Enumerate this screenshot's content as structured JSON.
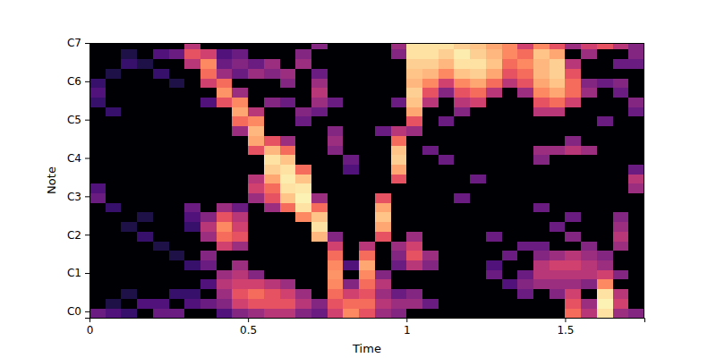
{
  "chart_data": {
    "type": "heatmap",
    "xlabel": "Time",
    "ylabel": "Note",
    "x": [
      0,
      0.05,
      0.1,
      0.15,
      0.2,
      0.25,
      0.3,
      0.35,
      0.4,
      0.45,
      0.5,
      0.55,
      0.6,
      0.65,
      0.7,
      0.75,
      0.8,
      0.85,
      0.9,
      0.95,
      1,
      1.05,
      1.1,
      1.15,
      1.2,
      1.25,
      1.3,
      1.35,
      1.4,
      1.45,
      1.5,
      1.55,
      1.6,
      1.65,
      1.7
    ],
    "y": [
      10,
      13,
      16,
      19,
      22,
      25,
      28,
      31,
      34,
      37,
      40,
      43,
      46,
      49,
      52,
      55,
      58,
      61,
      64,
      67,
      70,
      73,
      76,
      79,
      82,
      85,
      88,
      91,
      94
    ],
    "z": [
      [
        -55,
        -60,
        -65,
        -80,
        -55,
        -55,
        -80,
        -80,
        -60,
        -50,
        -45,
        -40,
        -40,
        -50,
        -55,
        -35,
        -20,
        -30,
        -45,
        -50,
        -80,
        -80,
        -80,
        -80,
        -80,
        -80,
        -80,
        -80,
        -80,
        -80,
        -25,
        -40,
        -5,
        -45,
        -50
      ],
      [
        -80,
        -70,
        -80,
        -60,
        -60,
        -80,
        -60,
        -55,
        -50,
        -35,
        -30,
        -30,
        -30,
        -40,
        -50,
        -30,
        -25,
        -25,
        -40,
        -45,
        -45,
        -55,
        -80,
        -80,
        -80,
        -80,
        -80,
        -80,
        -80,
        -80,
        -30,
        -45,
        -2,
        -35,
        -80
      ],
      [
        -80,
        -80,
        -70,
        -80,
        -80,
        -65,
        -65,
        -80,
        -45,
        -30,
        -25,
        -30,
        -35,
        -45,
        -80,
        -25,
        -35,
        -30,
        -45,
        -55,
        -50,
        -80,
        -80,
        -80,
        -80,
        -80,
        -80,
        -55,
        -80,
        -50,
        -35,
        -80,
        -5,
        -40,
        -80
      ],
      [
        -80,
        -80,
        -80,
        -80,
        -80,
        -80,
        -80,
        -60,
        -40,
        -35,
        -35,
        -40,
        -45,
        -80,
        -80,
        -20,
        -50,
        -25,
        -40,
        -80,
        -80,
        -80,
        -80,
        -80,
        -80,
        -80,
        -60,
        -50,
        -45,
        -45,
        -45,
        -50,
        -20,
        -80,
        -80
      ],
      [
        -80,
        -80,
        -80,
        -80,
        -80,
        -80,
        -80,
        -80,
        -45,
        -40,
        -50,
        -80,
        -80,
        -80,
        -80,
        -18,
        -80,
        -20,
        -50,
        -80,
        -80,
        -80,
        -80,
        -80,
        -80,
        -55,
        -80,
        -55,
        -40,
        -40,
        -40,
        -40,
        -35,
        -50,
        -80
      ],
      [
        -80,
        -80,
        -80,
        -80,
        -80,
        -80,
        -65,
        -55,
        -80,
        -45,
        -80,
        -80,
        -80,
        -80,
        -80,
        -20,
        -60,
        -15,
        -80,
        -55,
        -40,
        -50,
        -80,
        -80,
        -80,
        -60,
        -80,
        -80,
        -40,
        -35,
        -35,
        -40,
        -45,
        -80,
        -80
      ],
      [
        -80,
        -80,
        -80,
        -80,
        -80,
        -70,
        -80,
        -50,
        -80,
        -80,
        -80,
        -80,
        -80,
        -80,
        -80,
        -25,
        -80,
        -25,
        -80,
        -50,
        -30,
        -45,
        -80,
        -80,
        -80,
        -80,
        -55,
        -80,
        -50,
        -45,
        -40,
        -45,
        -50,
        -80,
        -80
      ],
      [
        -80,
        -80,
        -80,
        -80,
        -70,
        -80,
        -80,
        -80,
        -35,
        -45,
        -80,
        -80,
        -80,
        -80,
        -80,
        -35,
        -80,
        -40,
        -80,
        -45,
        -35,
        -80,
        -80,
        -80,
        -80,
        -80,
        -80,
        -55,
        -55,
        -80,
        -80,
        -50,
        -80,
        -45,
        -80
      ],
      [
        -80,
        -80,
        -80,
        -65,
        -80,
        -80,
        -80,
        -45,
        -25,
        -30,
        -80,
        -80,
        -80,
        -80,
        -12,
        -50,
        -80,
        -80,
        -30,
        -80,
        -45,
        -80,
        -80,
        -80,
        -80,
        -55,
        -80,
        -80,
        -80,
        -80,
        -50,
        -80,
        -80,
        -40,
        -80
      ],
      [
        -80,
        -80,
        -70,
        -80,
        -80,
        -80,
        -65,
        -40,
        -20,
        -35,
        -80,
        -80,
        -80,
        -80,
        -5,
        -80,
        -80,
        -80,
        -15,
        -80,
        -80,
        -80,
        -80,
        -80,
        -80,
        -80,
        -80,
        -80,
        -80,
        -55,
        -80,
        -80,
        -80,
        -45,
        -80
      ],
      [
        -80,
        -80,
        -80,
        -70,
        -80,
        -80,
        -60,
        -50,
        -30,
        -40,
        -80,
        -80,
        -80,
        -20,
        -10,
        -80,
        -80,
        -80,
        -10,
        -80,
        -80,
        -80,
        -80,
        -80,
        -80,
        -80,
        -80,
        -80,
        -80,
        -80,
        -55,
        -80,
        -80,
        -50,
        -80
      ],
      [
        -80,
        -65,
        -80,
        -80,
        -80,
        -80,
        -55,
        -80,
        -45,
        -55,
        -80,
        -45,
        -25,
        -5,
        -25,
        -80,
        -80,
        -80,
        -15,
        -80,
        -80,
        -80,
        -80,
        -80,
        -80,
        -80,
        -80,
        -80,
        -55,
        -80,
        -80,
        -80,
        -80,
        -80,
        -80
      ],
      [
        -55,
        -80,
        -80,
        -80,
        -80,
        -80,
        -80,
        -80,
        -80,
        -80,
        -45,
        -30,
        -10,
        -2,
        -45,
        -80,
        -80,
        -80,
        -30,
        -80,
        -80,
        -80,
        -80,
        -55,
        -80,
        -80,
        -80,
        -80,
        -80,
        -80,
        -80,
        -80,
        -80,
        -80,
        -80
      ],
      [
        -60,
        -80,
        -80,
        -80,
        -80,
        -80,
        -80,
        -80,
        -80,
        -80,
        -35,
        -25,
        -5,
        -4,
        -80,
        -80,
        -80,
        -80,
        -80,
        -80,
        -80,
        -80,
        -80,
        -80,
        -80,
        -80,
        -80,
        -80,
        -80,
        -80,
        -80,
        -80,
        -80,
        -80,
        -45
      ],
      [
        -80,
        -80,
        -80,
        -80,
        -80,
        -80,
        -80,
        -80,
        -80,
        -80,
        -40,
        -15,
        -3,
        -10,
        -80,
        -80,
        -80,
        -80,
        -80,
        -30,
        -80,
        -80,
        -80,
        -80,
        -55,
        -80,
        -80,
        -80,
        -80,
        -80,
        -80,
        -80,
        -80,
        -80,
        -40
      ],
      [
        -80,
        -80,
        -80,
        -80,
        -80,
        -80,
        -80,
        -80,
        -80,
        -80,
        -80,
        -8,
        -5,
        -25,
        -80,
        -80,
        -60,
        -80,
        -80,
        -15,
        -80,
        -80,
        -80,
        -80,
        -80,
        -80,
        -80,
        -80,
        -80,
        -80,
        -80,
        -80,
        -80,
        -80,
        -55
      ],
      [
        -80,
        -80,
        -80,
        -80,
        -80,
        -80,
        -80,
        -80,
        -80,
        -80,
        -80,
        -5,
        -10,
        -80,
        -80,
        -80,
        -55,
        -80,
        -80,
        -8,
        -80,
        -80,
        -55,
        -80,
        -80,
        -80,
        -80,
        -80,
        -50,
        -80,
        -80,
        -80,
        -80,
        -80,
        -80
      ],
      [
        -80,
        -80,
        -80,
        -80,
        -80,
        -80,
        -80,
        -80,
        -80,
        -80,
        -30,
        -12,
        -25,
        -80,
        -80,
        -50,
        -80,
        -80,
        -80,
        -10,
        -80,
        -55,
        -80,
        -80,
        -80,
        -80,
        -80,
        -80,
        -45,
        -45,
        -40,
        -45,
        -80,
        -80,
        -80
      ],
      [
        -80,
        -80,
        -80,
        -80,
        -80,
        -80,
        -80,
        -80,
        -80,
        -80,
        -15,
        -30,
        -45,
        -80,
        -80,
        -45,
        -80,
        -80,
        -80,
        -25,
        -80,
        -80,
        -80,
        -80,
        -80,
        -80,
        -80,
        -80,
        -80,
        -80,
        -50,
        -80,
        -80,
        -80,
        -80
      ],
      [
        -80,
        -80,
        -80,
        -80,
        -80,
        -80,
        -80,
        -80,
        -80,
        -45,
        -12,
        -80,
        -80,
        -80,
        -80,
        -50,
        -80,
        -80,
        -55,
        -40,
        -45,
        -80,
        -80,
        -80,
        -80,
        -80,
        -80,
        -80,
        -80,
        -80,
        -80,
        -80,
        -80,
        -80,
        -80
      ],
      [
        -80,
        -80,
        -80,
        -80,
        -80,
        -80,
        -80,
        -80,
        -80,
        -25,
        -20,
        -80,
        -80,
        -55,
        -80,
        -80,
        -80,
        -80,
        -80,
        -80,
        -30,
        -80,
        -55,
        -80,
        -80,
        -80,
        -80,
        -80,
        -80,
        -80,
        -80,
        -80,
        -55,
        -80,
        -80
      ],
      [
        -80,
        -65,
        -80,
        -80,
        -80,
        -80,
        -80,
        -80,
        -80,
        -15,
        -40,
        -80,
        -80,
        -50,
        -55,
        -80,
        -80,
        -80,
        -80,
        -80,
        -15,
        -80,
        -80,
        -50,
        -80,
        -80,
        -80,
        -80,
        -40,
        -40,
        -80,
        -80,
        -80,
        -80,
        -55
      ],
      [
        -65,
        -80,
        -80,
        -80,
        -80,
        -80,
        -80,
        -60,
        -30,
        -20,
        -80,
        -50,
        -55,
        -80,
        -45,
        -55,
        -80,
        -80,
        -80,
        -55,
        -10,
        -40,
        -80,
        -40,
        -35,
        -80,
        -80,
        -80,
        -30,
        -25,
        -35,
        -80,
        -80,
        -80,
        -50
      ],
      [
        -60,
        -80,
        -80,
        -80,
        -80,
        -80,
        -80,
        -80,
        -18,
        -45,
        -80,
        -80,
        -80,
        -80,
        -40,
        -80,
        -80,
        -80,
        -80,
        -80,
        -8,
        -30,
        -50,
        -30,
        -25,
        -40,
        -80,
        -45,
        -20,
        -15,
        -25,
        -45,
        -80,
        -55,
        -80
      ],
      [
        -65,
        -80,
        -80,
        -80,
        -80,
        -70,
        -80,
        -35,
        -25,
        -80,
        -80,
        -80,
        -50,
        -80,
        -45,
        -80,
        -80,
        -80,
        -80,
        -80,
        -12,
        -20,
        -35,
        -20,
        -15,
        -25,
        -40,
        -30,
        -15,
        -10,
        -25,
        -50,
        -55,
        -50,
        -80
      ],
      [
        -80,
        -70,
        -80,
        -80,
        -65,
        -80,
        -80,
        -25,
        -45,
        -55,
        -45,
        -50,
        -45,
        -80,
        -55,
        -80,
        -80,
        -80,
        -80,
        -80,
        -10,
        -12,
        -20,
        -10,
        -8,
        -15,
        -30,
        -25,
        -12,
        -8,
        -30,
        -80,
        -80,
        -80,
        -80
      ],
      [
        -80,
        -80,
        -65,
        -70,
        -80,
        -80,
        -40,
        -20,
        -55,
        -50,
        -55,
        -45,
        -80,
        -45,
        -80,
        -80,
        -80,
        -80,
        -80,
        -80,
        -8,
        -8,
        -12,
        -5,
        -5,
        -10,
        -25,
        -20,
        -12,
        -8,
        -40,
        -80,
        -80,
        -55,
        -55
      ],
      [
        -80,
        -80,
        -70,
        -80,
        -60,
        -55,
        -30,
        -35,
        -60,
        -55,
        -80,
        -80,
        -80,
        -50,
        -80,
        -80,
        -80,
        -80,
        -80,
        -50,
        -5,
        -5,
        -8,
        -3,
        -8,
        -12,
        -20,
        -25,
        -10,
        -15,
        -80,
        -45,
        -80,
        -80,
        -50
      ],
      [
        -80,
        -80,
        -80,
        -80,
        -80,
        -80,
        -40,
        -80,
        -80,
        -80,
        -80,
        -80,
        -80,
        -80,
        -50,
        -80,
        -80,
        -80,
        -80,
        -45,
        -5,
        -5,
        -5,
        -8,
        -10,
        -15,
        -20,
        -35,
        -20,
        -30,
        -45,
        -35,
        -30,
        -40,
        -50
      ]
    ],
    "xlim": [
      0,
      1.75
    ],
    "ylim": [
      10,
      96
    ],
    "xticks": [
      0,
      0.5,
      1,
      1.5
    ],
    "yticks": [
      {
        "value": 12,
        "label": "C0"
      },
      {
        "value": 24,
        "label": "C1"
      },
      {
        "value": 36,
        "label": "C2"
      },
      {
        "value": 48,
        "label": "C3"
      },
      {
        "value": 60,
        "label": "C4"
      },
      {
        "value": 72,
        "label": "C5"
      },
      {
        "value": 84,
        "label": "C6"
      },
      {
        "value": 96,
        "label": "C7"
      }
    ],
    "color_range": [
      -80,
      0
    ]
  }
}
